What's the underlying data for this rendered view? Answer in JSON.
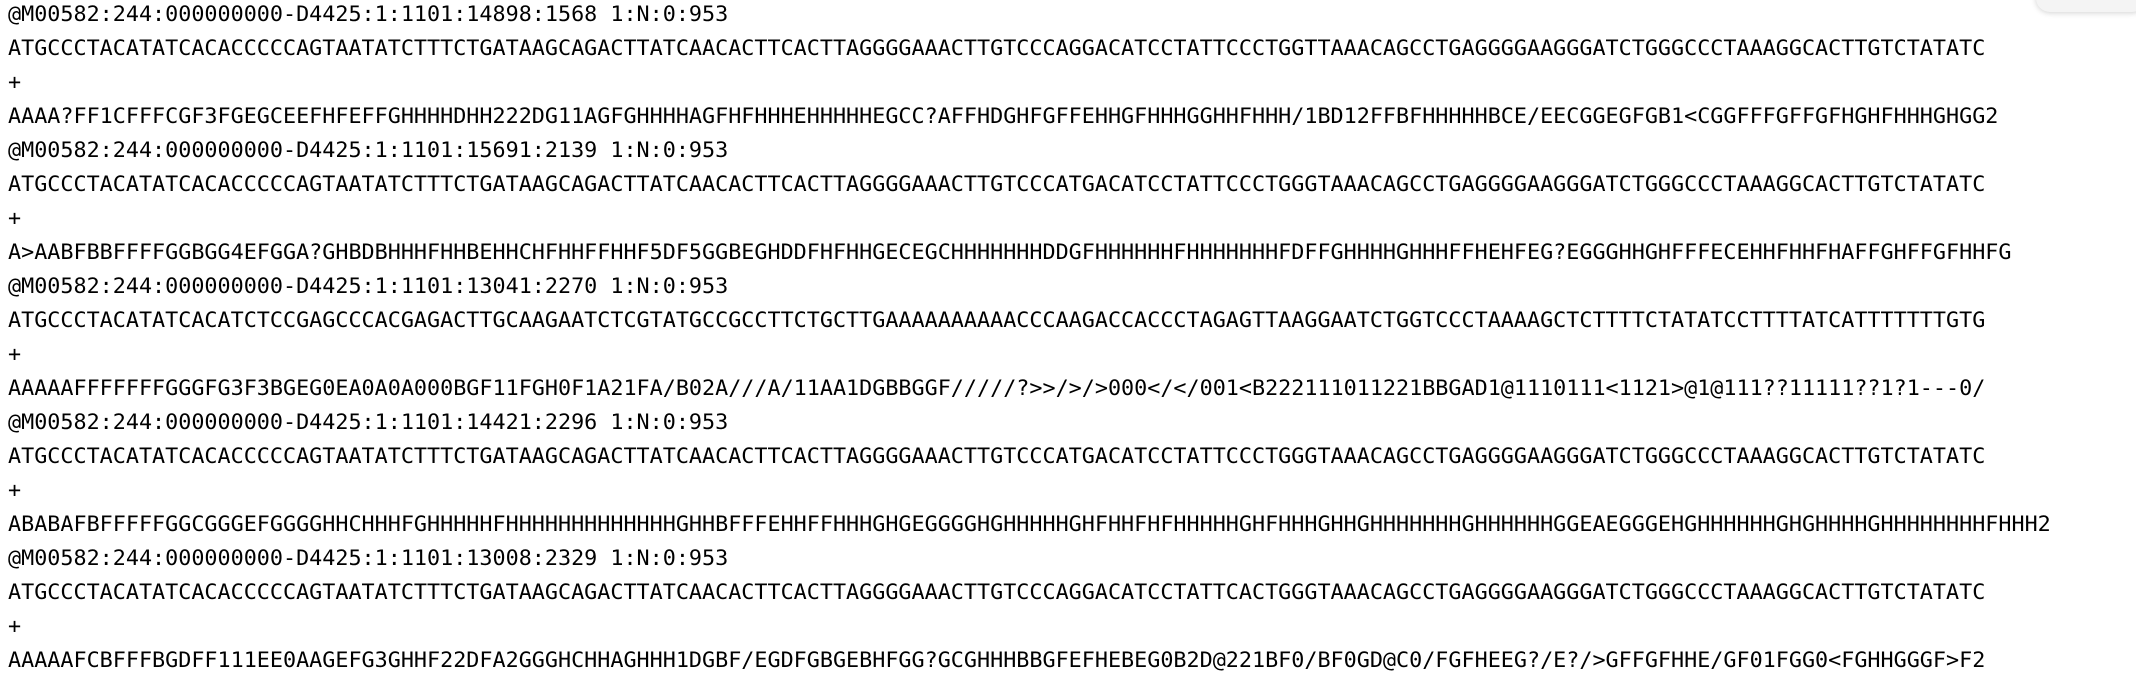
{
  "file": {
    "lines": [
      "@M00582:244:000000000-D4425:1:1101:14898:1568 1:N:0:953",
      "ATGCCCTACATATCACACCCCCAGTAATATCTTTCTGATAAGCAGACTTATCAACACTTCACTTAGGGGAAACTTGTCCCAGGACATCCTATTCCCTGGTTAAACAGCCTGAGGGGAAGGGATCTGGGCCCTAAAGGCACTTGTCTATATC",
      "+",
      "AAAA?FF1CFFFCGF3FGEGCEEFHFEFFGHHHHDHH222DG11AGFGHHHHAGFHFHHHEHHHHHEGCC?AFFHDGHFGFFEHHGFHHHGGHHFHHH/1BD12FFBFHHHHHBCE/EECGGEGFGB1<CGGFFFGFFGFHGHFHHHGHGG2",
      "@M00582:244:000000000-D4425:1:1101:15691:2139 1:N:0:953",
      "ATGCCCTACATATCACACCCCCAGTAATATCTTTCTGATAAGCAGACTTATCAACACTTCACTTAGGGGAAACTTGTCCCATGACATCCTATTCCCTGGGTAAACAGCCTGAGGGGAAGGGATCTGGGCCCTAAAGGCACTTGTCTATATC",
      "+",
      "A>AABFBBFFFFGGBGG4EFGGA?GHBDBHHHFHHBEHHCHFHHFFHHF5DF5GGBEGHDDFHFHHGECEGCHHHHHHHDDGFHHHHHHFHHHHHHHFDFFGHHHHGHHHFFHEHFEG?EGGGHHGHFFFECEHHFHHFHAFFGHFFGFHHFG",
      "@M00582:244:000000000-D4425:1:1101:13041:2270 1:N:0:953",
      "ATGCCCTACATATCACATCTCCGAGCCCACGAGACTTGCAAGAATCTCGTATGCCGCCTTCTGCTTGAAAAAAAAAACCCAAGACCACCCTAGAGTTAAGGAATCTGGTCCCTAAAAGCTCTTTTCTATATCCTTTTATCATTTTTTTGTG",
      "+",
      "AAAAAFFFFFFFGGGFG3F3BGEG0EA0A0A000BGF11FGH0F1A21FA/B02A///A/11AA1DGBBGGF/////?>>/>/>000</</001<B222111011221BBGAD1@1110111<1121>@1@111??11111??1?1---0/",
      "@M00582:244:000000000-D4425:1:1101:14421:2296 1:N:0:953",
      "ATGCCCTACATATCACACCCCCAGTAATATCTTTCTGATAAGCAGACTTATCAACACTTCACTTAGGGGAAACTTGTCCCATGACATCCTATTCCCTGGGTAAACAGCCTGAGGGGAAGGGATCTGGGCCCTAAAGGCACTTGTCTATATC",
      "+",
      "ABABAFBFFFFFGGCGGGEFGGGGHHCHHHFGHHHHHFHHHHHHHHHHHHHGHHBFFFEHHFFHHHGHGEGGGGHGHHHHHGHFHHFHFHHHHHGHFHHHGHHGHHHHHHHGHHHHHHGGEAEGGGEHGHHHHHHGHGHHHHGHHHHHHHHFHHH2",
      "@M00582:244:000000000-D4425:1:1101:13008:2329 1:N:0:953",
      "ATGCCCTACATATCACACCCCCAGTAATATCTTTCTGATAAGCAGACTTATCAACACTTCACTTAGGGGAAACTTGTCCCAGGACATCCTATTCACTGGGTAAACAGCCTGAGGGGAAGGGATCTGGGCCCTAAAGGCACTTGTCTATATC",
      "+",
      "AAAAAFCBFFFBGDFF111EE0AAGEFG3GHHF22DFA2GGGHCHHAGHHH1DGBF/EGDFGBGEBHFGG?GCGHHHBBGFEFHEBEG0B2D@221BF0/BF0GD@C0/FGFHEEG?/E?/>GFFGFHHE/GF01FGG0<FGHHGGGF>F2"
    ]
  }
}
